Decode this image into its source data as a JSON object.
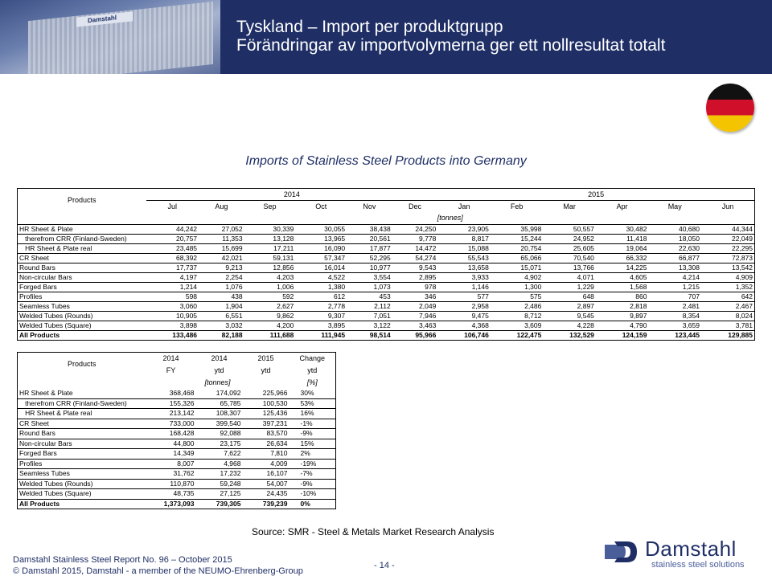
{
  "header": {
    "title_line1": "Tyskland – Import per produktgrupp",
    "title_line2": "Förändringar av importvolymerna ger ett nollresultat totalt",
    "photo_sign": "Damstahl"
  },
  "subtitle": "Imports of Stainless Steel Products into Germany",
  "monthly": {
    "products_label": "Products",
    "year_2014": "2014",
    "year_2015": "2015",
    "months": [
      "Jul",
      "Aug",
      "Sep",
      "Oct",
      "Nov",
      "Dec",
      "Jan",
      "Feb",
      "Mar",
      "Apr",
      "May",
      "Jun"
    ],
    "unit": "[tonnes]",
    "rows": [
      {
        "label": "HR Sheet & Plate",
        "values": [
          "44,242",
          "27,052",
          "30,339",
          "30,055",
          "38,438",
          "24,250",
          "23,905",
          "35,998",
          "50,557",
          "30,482",
          "40,680",
          "44,344"
        ]
      },
      {
        "label": "   therefrom CRR (Finland-Sweden)",
        "values": [
          "20,757",
          "11,353",
          "13,128",
          "13,965",
          "20,561",
          "9,778",
          "8,817",
          "15,244",
          "24,952",
          "11,418",
          "18,050",
          "22,049"
        ]
      },
      {
        "label": "   HR Sheet & Plate real",
        "values": [
          "23,485",
          "15,699",
          "17,211",
          "16,090",
          "17,877",
          "14,472",
          "15,088",
          "20,754",
          "25,605",
          "19,064",
          "22,630",
          "22,295"
        ]
      },
      {
        "label": "CR Sheet",
        "values": [
          "68,392",
          "42,021",
          "59,131",
          "57,347",
          "52,295",
          "54,274",
          "55,543",
          "65,066",
          "70,540",
          "66,332",
          "66,877",
          "72,873"
        ]
      },
      {
        "label": "Round Bars",
        "values": [
          "17,737",
          "9,213",
          "12,856",
          "16,014",
          "10,977",
          "9,543",
          "13,658",
          "15,071",
          "13,766",
          "14,225",
          "13,308",
          "13,542"
        ]
      },
      {
        "label": "Non-circular Bars",
        "values": [
          "4,197",
          "2,254",
          "4,203",
          "4,522",
          "3,554",
          "2,895",
          "3,933",
          "4,902",
          "4,071",
          "4,605",
          "4,214",
          "4,909"
        ]
      },
      {
        "label": "Forged Bars",
        "values": [
          "1,214",
          "1,076",
          "1,006",
          "1,380",
          "1,073",
          "978",
          "1,146",
          "1,300",
          "1,229",
          "1,568",
          "1,215",
          "1,352"
        ]
      },
      {
        "label": "Profiles",
        "values": [
          "598",
          "438",
          "592",
          "612",
          "453",
          "346",
          "577",
          "575",
          "648",
          "860",
          "707",
          "642"
        ]
      },
      {
        "label": "Seamless Tubes",
        "values": [
          "3,060",
          "1,904",
          "2,627",
          "2,778",
          "2,112",
          "2,049",
          "2,958",
          "2,486",
          "2,897",
          "2,818",
          "2,481",
          "2,467"
        ]
      },
      {
        "label": "Welded Tubes (Rounds)",
        "values": [
          "10,905",
          "6,551",
          "9,862",
          "9,307",
          "7,051",
          "7,946",
          "9,475",
          "8,712",
          "9,545",
          "9,897",
          "8,354",
          "8,024"
        ]
      },
      {
        "label": "Welded Tubes (Square)",
        "values": [
          "3,898",
          "3,032",
          "4,200",
          "3,895",
          "3,122",
          "3,463",
          "4,368",
          "3,609",
          "4,228",
          "4,790",
          "3,659",
          "3,781"
        ]
      }
    ],
    "total": {
      "label": "All Products",
      "values": [
        "133,486",
        "82,188",
        "111,688",
        "111,945",
        "98,514",
        "95,966",
        "106,746",
        "122,475",
        "132,529",
        "124,159",
        "123,445",
        "129,885"
      ]
    }
  },
  "summary": {
    "products_label": "Products",
    "col_years": [
      "2014",
      "2014",
      "2015",
      "Change"
    ],
    "col_periods": [
      "FY",
      "ytd",
      "ytd",
      "ytd"
    ],
    "unit_tonnes": "[tonnes]",
    "unit_pct": "[%]",
    "rows": [
      {
        "label": "HR Sheet & Plate",
        "values": [
          "368,468",
          "174,092",
          "225,966",
          "30%"
        ]
      },
      {
        "label": "   therefrom CRR (Finland-Sweden)",
        "values": [
          "155,326",
          "65,785",
          "100,530",
          "53%"
        ]
      },
      {
        "label": "   HR Sheet & Plate real",
        "values": [
          "213,142",
          "108,307",
          "125,436",
          "16%"
        ]
      },
      {
        "label": "CR Sheet",
        "values": [
          "733,000",
          "399,540",
          "397,231",
          "-1%"
        ]
      },
      {
        "label": "Round Bars",
        "values": [
          "168,428",
          "92,088",
          "83,570",
          "-9%"
        ]
      },
      {
        "label": "Non-circular Bars",
        "values": [
          "44,800",
          "23,175",
          "26,634",
          "15%"
        ]
      },
      {
        "label": "Forged Bars",
        "values": [
          "14,349",
          "7,622",
          "7,810",
          "2%"
        ]
      },
      {
        "label": "Profiles",
        "values": [
          "8,007",
          "4,968",
          "4,009",
          "-19%"
        ]
      },
      {
        "label": "Seamless Tubes",
        "values": [
          "31,762",
          "17,232",
          "16,107",
          "-7%"
        ]
      },
      {
        "label": "Welded Tubes (Rounds)",
        "values": [
          "110,870",
          "59,248",
          "54,007",
          "-9%"
        ]
      },
      {
        "label": "Welded Tubes (Square)",
        "values": [
          "48,735",
          "27,125",
          "24,435",
          "-10%"
        ]
      }
    ],
    "total": {
      "label": "All Products",
      "values": [
        "1,373,093",
        "739,305",
        "739,239",
        "0%"
      ]
    }
  },
  "source": "Source: SMR - Steel & Metals Market Research Analysis",
  "footer": {
    "report": "Damstahl Stainless Steel Report No. 96 – October 2015",
    "copyright": "© Damstahl 2015, Damstahl - a member of the NEUMO-Ehrenberg-Group",
    "page": "- 14 -"
  },
  "logo": {
    "name": "Damstahl",
    "tagline": "stainless steel solutions"
  },
  "colors": {
    "brand": "#1f2f66",
    "flag": [
      "#111111",
      "#d0102b",
      "#f5c400"
    ]
  }
}
